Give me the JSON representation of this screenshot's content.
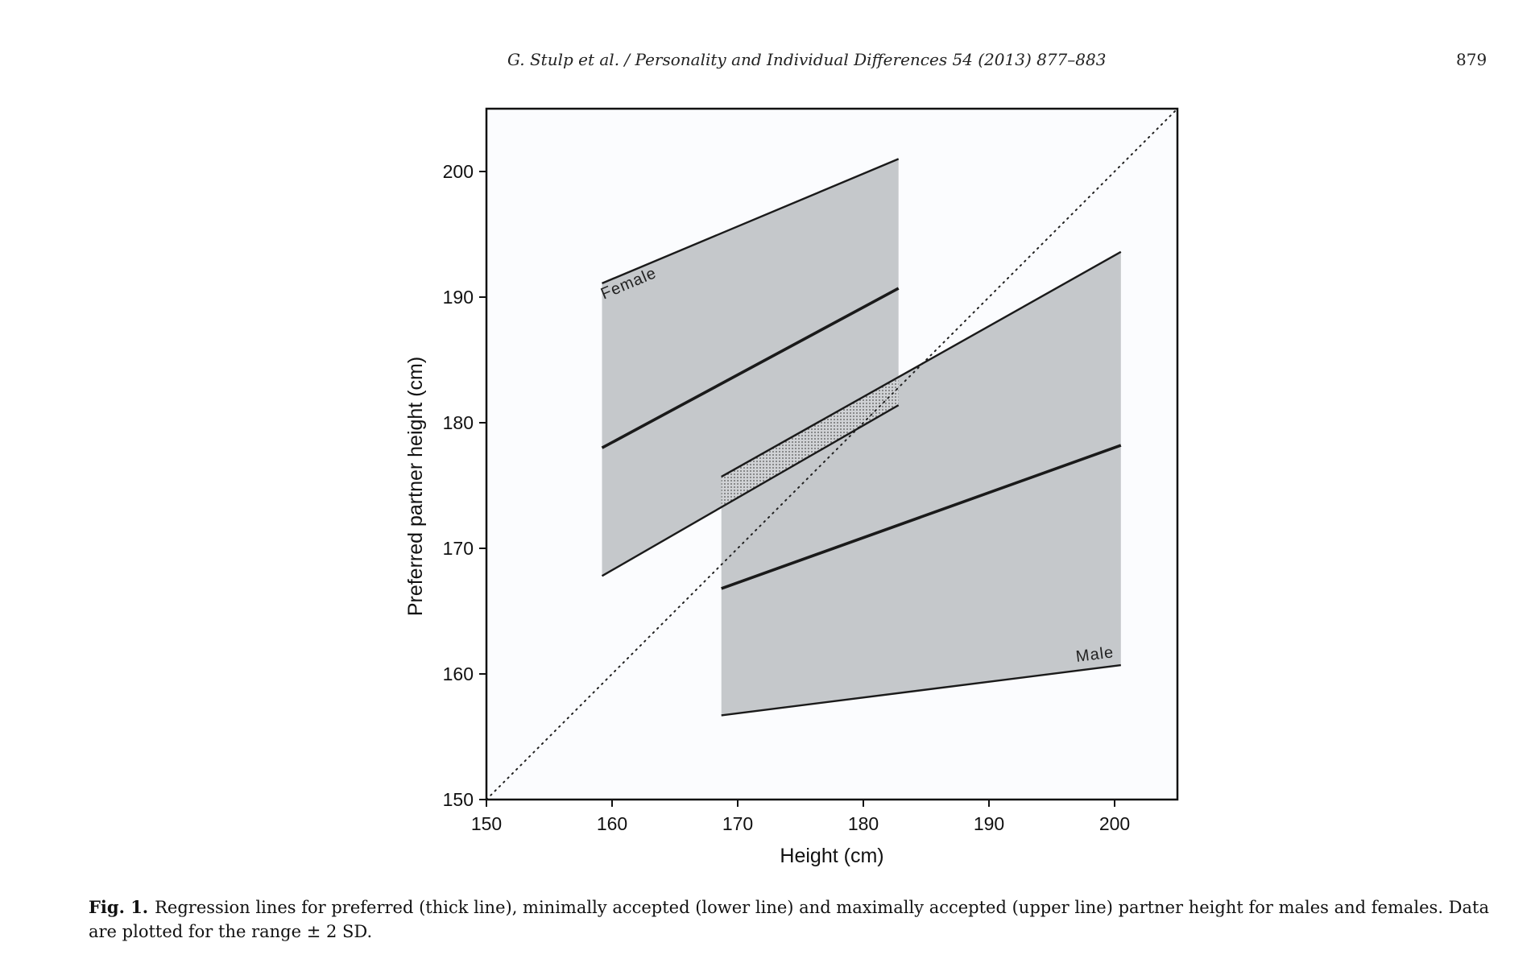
{
  "header": {
    "journal_ref": "G. Stulp et al. / Personality and Individual Differences 54 (2013) 877–883",
    "page_number": "879"
  },
  "caption": {
    "label": "Fig. 1.",
    "text": "Regression lines for preferred (thick line), minimally accepted (lower line) and maximally accepted (upper line) partner height for males and females. Data are plotted for the range ± 2 SD."
  },
  "chart_data": {
    "type": "line",
    "title": "",
    "xlabel": "Height (cm)",
    "ylabel": "Preferred partner height (cm)",
    "xlim": [
      150,
      205
    ],
    "ylim": [
      150,
      205
    ],
    "xticks": [
      150,
      160,
      170,
      180,
      190,
      200
    ],
    "yticks": [
      150,
      160,
      170,
      180,
      190,
      200
    ],
    "grid": false,
    "colors": {
      "band_fill": "#c5c8cb",
      "overlap_fill": "#8f9398",
      "line": "#1a1a1a",
      "background": "#fbfcfe"
    },
    "reference_line": {
      "style": "dotted",
      "x": [
        150,
        205
      ],
      "y": [
        150,
        205
      ]
    },
    "series": [
      {
        "name": "Female",
        "x": [
          159.2,
          182.8
        ],
        "max_accepted": [
          191.1,
          201.0
        ],
        "preferred": [
          178.0,
          190.7
        ],
        "min_accepted": [
          167.8,
          181.4
        ]
      },
      {
        "name": "Male",
        "x": [
          168.7,
          200.5
        ],
        "max_accepted": [
          175.7,
          193.6
        ],
        "preferred": [
          166.8,
          178.2
        ],
        "min_accepted": [
          156.7,
          160.7
        ]
      }
    ]
  }
}
